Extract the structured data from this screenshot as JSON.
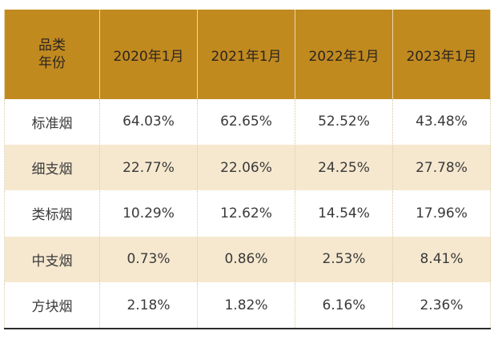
{
  "chart_data": {
    "type": "table",
    "corner_header": [
      "品类",
      "年份"
    ],
    "columns": [
      "2020年1月",
      "2021年1月",
      "2022年1月",
      "2023年1月"
    ],
    "rows": [
      {
        "category": "标准烟",
        "values": [
          "64.03%",
          "62.65%",
          "52.52%",
          "43.48%"
        ]
      },
      {
        "category": "细支烟",
        "values": [
          "22.77%",
          "22.06%",
          "24.25%",
          "27.78%"
        ]
      },
      {
        "category": "类标烟",
        "values": [
          "10.29%",
          "12.62%",
          "14.54%",
          "17.96%"
        ]
      },
      {
        "category": "中支烟",
        "values": [
          "0.73%",
          "0.86%",
          "2.53%",
          "8.41%"
        ]
      },
      {
        "category": "方块烟",
        "values": [
          "2.18%",
          "1.82%",
          "6.16%",
          "2.36%"
        ]
      }
    ]
  },
  "colors": {
    "header_bg": "#c18a1f",
    "alt_row_bg": "#f6e8cf",
    "text": "#3a3a3a"
  }
}
